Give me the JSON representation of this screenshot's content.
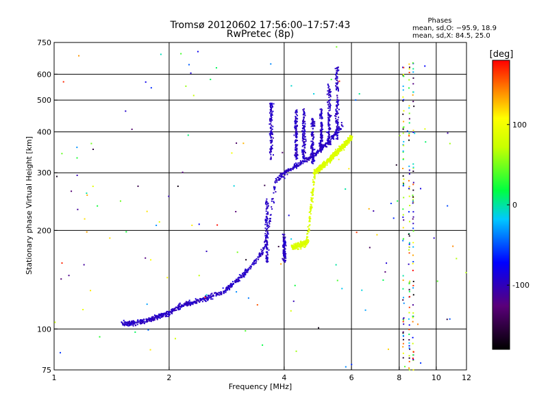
{
  "chart_data": {
    "type": "scatter",
    "title": "Tromsø 20120602 17:56:00–17:57:43",
    "subtitle": "RwPretec (8p)",
    "xlabel": "Frequency [MHz]",
    "ylabel": "Stationary phase Virtual Height [km]",
    "x_scale": "log",
    "y_scale": "log",
    "xlim": [
      1,
      12
    ],
    "ylim": [
      75,
      750
    ],
    "x_ticks": [
      1,
      2,
      4,
      6,
      8,
      10,
      12
    ],
    "y_ticks": [
      75,
      100,
      200,
      300,
      400,
      500,
      600,
      750
    ],
    "x_grid": [
      2,
      4,
      6,
      8,
      10
    ],
    "y_grid": [
      100,
      200,
      300,
      400,
      500,
      600
    ],
    "grid": true,
    "phases_box": {
      "title": "Phases",
      "line1": "mean, sd,O: −95.9, 18.9",
      "line2": "mean, sd,X:  84.5, 25.0"
    },
    "colorbar": {
      "label": "[deg]",
      "min": -180,
      "max": 180,
      "ticks": [
        100,
        0,
        -100
      ],
      "colormap": "rainbow"
    },
    "series": [
      {
        "name": "O",
        "phase": -95.9,
        "trace": [
          [
            1.5,
            104
          ],
          [
            1.6,
            104
          ],
          [
            1.7,
            105
          ],
          [
            2.0,
            112
          ],
          [
            2.1,
            116
          ],
          [
            2.2,
            119
          ],
          [
            2.4,
            122
          ],
          [
            2.6,
            126
          ],
          [
            2.8,
            131
          ],
          [
            3.0,
            140
          ],
          [
            3.2,
            150
          ],
          [
            3.35,
            160
          ],
          [
            3.5,
            172
          ],
          [
            3.6,
            190
          ],
          [
            3.65,
            205
          ],
          [
            3.7,
            230
          ],
          [
            3.75,
            260
          ],
          [
            3.8,
            282
          ],
          [
            3.9,
            290
          ],
          [
            4.0,
            297
          ],
          [
            4.2,
            310
          ],
          [
            4.4,
            320
          ],
          [
            4.6,
            330
          ],
          [
            4.8,
            340
          ],
          [
            5.0,
            355
          ],
          [
            5.2,
            372
          ],
          [
            5.4,
            392
          ],
          [
            5.6,
            410
          ],
          [
            5.7,
            425
          ]
        ],
        "cusps": [
          {
            "x": 3.7,
            "y0": 330,
            "y1": 490
          },
          {
            "x": 3.6,
            "y0": 160,
            "y1": 250
          },
          {
            "x": 4.0,
            "y0": 160,
            "y1": 195
          },
          {
            "x": 4.3,
            "y0": 330,
            "y1": 470
          },
          {
            "x": 4.5,
            "y0": 330,
            "y1": 470
          },
          {
            "x": 4.75,
            "y0": 320,
            "y1": 440
          },
          {
            "x": 5.0,
            "y0": 350,
            "y1": 470
          },
          {
            "x": 5.25,
            "y0": 360,
            "y1": 560
          },
          {
            "x": 5.5,
            "y0": 380,
            "y1": 630
          }
        ]
      },
      {
        "name": "X",
        "phase": 84.5,
        "trace": [
          [
            4.2,
            178
          ],
          [
            4.4,
            180
          ],
          [
            4.6,
            185
          ],
          [
            4.8,
            300
          ],
          [
            5.0,
            312
          ],
          [
            5.2,
            325
          ],
          [
            5.4,
            340
          ],
          [
            5.6,
            355
          ],
          [
            5.8,
            368
          ],
          [
            6.0,
            385
          ]
        ]
      }
    ],
    "vertical_bands": [
      {
        "x": 8.5,
        "y0": 75,
        "y1": 650
      },
      {
        "x": 8.7,
        "y0": 75,
        "y1": 650
      },
      {
        "x": 8.2,
        "y0": 80,
        "y1": 650
      }
    ],
    "random_seed": 17
  }
}
